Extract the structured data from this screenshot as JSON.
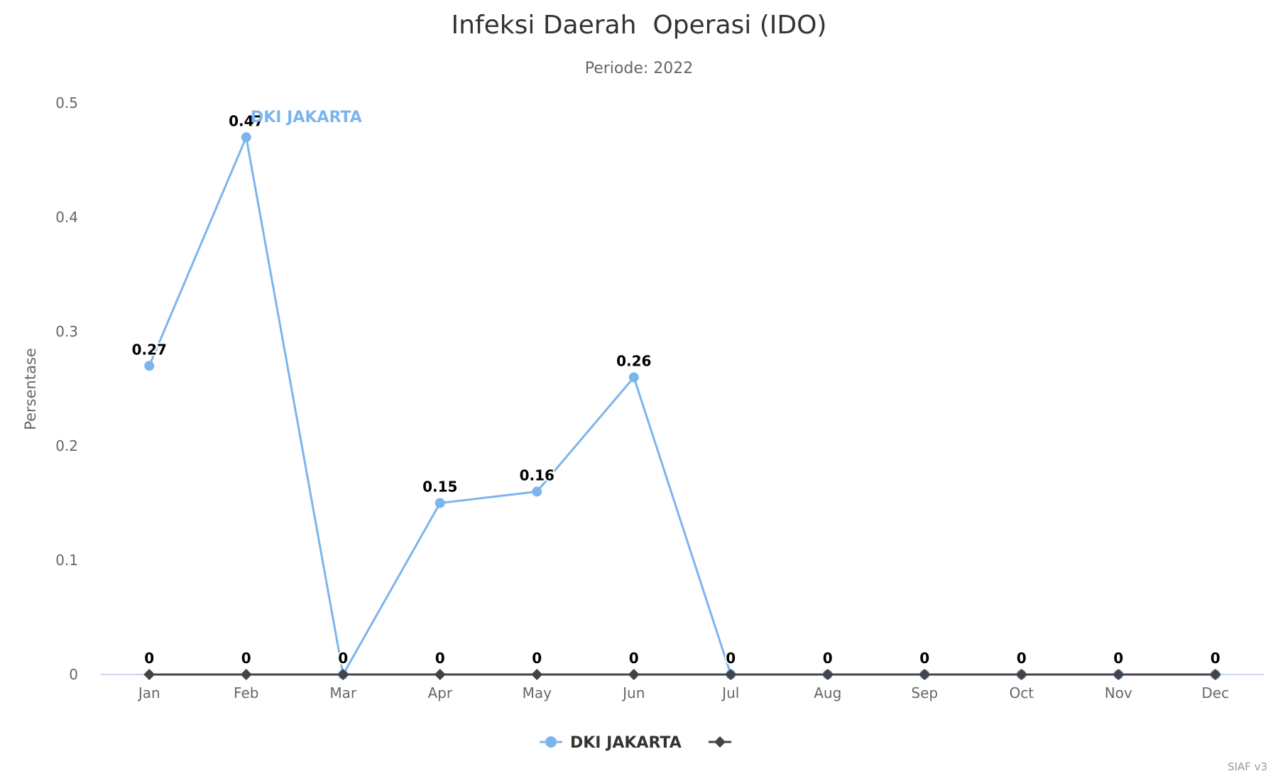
{
  "header": {
    "title": "Infeksi Daerah  Operasi (IDO)",
    "subtitle": "Periode: 2022"
  },
  "credits": "SIAF v3",
  "colors": {
    "series1": "#7cb5ec",
    "series2": "#434348",
    "axis_line": "#ccd6eb",
    "text": "#333333",
    "muted": "#666666"
  },
  "legend": {
    "items": [
      {
        "label": "DKI JAKARTA",
        "symbol": "circle-icon"
      },
      {
        "label": "",
        "symbol": "diamond-icon"
      }
    ]
  },
  "chart_data": {
    "type": "line",
    "title": "Infeksi Daerah  Operasi (IDO)",
    "subtitle": "Periode: 2022",
    "xlabel": "",
    "ylabel": "Persentase",
    "categories": [
      "Jan",
      "Feb",
      "Mar",
      "Apr",
      "May",
      "Jun",
      "Jul",
      "Aug",
      "Sep",
      "Oct",
      "Nov",
      "Dec"
    ],
    "yticks": [
      0,
      0.1,
      0.2,
      0.3,
      0.4,
      0.5
    ],
    "ylim": [
      0,
      0.5
    ],
    "grid": false,
    "legend_position": "bottom-center",
    "series": [
      {
        "name": "DKI JAKARTA",
        "marker": "circle",
        "color": "#7cb5ec",
        "values": [
          0.27,
          0.47,
          0,
          0.15,
          0.16,
          0.26,
          0,
          0,
          0,
          0,
          0,
          0
        ],
        "data_labels": [
          "0.27",
          "0.47",
          "",
          "0.15",
          "0.16",
          "0.26",
          "",
          "",
          "",
          "",
          "",
          ""
        ]
      },
      {
        "name": "",
        "marker": "diamond",
        "color": "#434348",
        "values": [
          0,
          0,
          0,
          0,
          0,
          0,
          0,
          0,
          0,
          0,
          0,
          0
        ],
        "data_labels": [
          "0",
          "0",
          "0",
          "0",
          "0",
          "0",
          "0",
          "0",
          "0",
          "0",
          "0",
          "0"
        ]
      }
    ],
    "annotations": [
      {
        "text": "DKI JAKARTA",
        "type": "series-label",
        "near": "Feb"
      }
    ]
  }
}
